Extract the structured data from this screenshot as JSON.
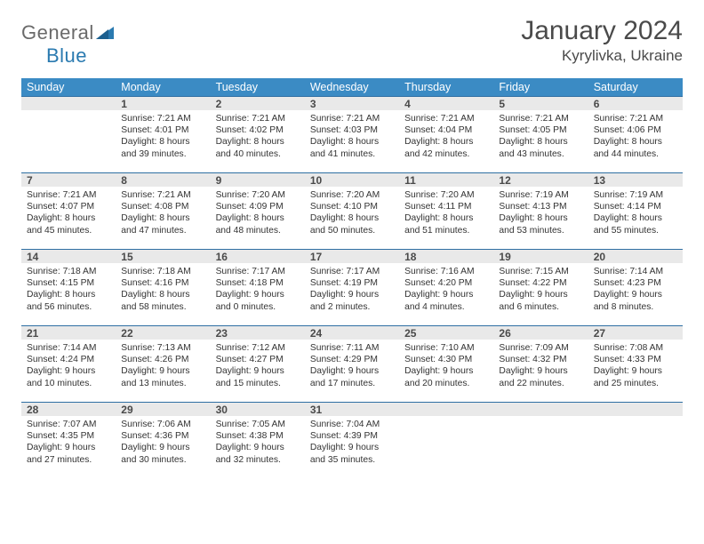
{
  "brand": {
    "general": "General",
    "blue": "Blue"
  },
  "title": "January 2024",
  "location": "Kyrylivka, Ukraine",
  "colors": {
    "header_bg": "#3b8bc4",
    "header_text": "#ffffff",
    "daynum_bg": "#e9e9e9",
    "row_border": "#2f6fa3",
    "text": "#333333",
    "title_color": "#4a4a4a"
  },
  "typography": {
    "title_fontsize": 30,
    "location_fontsize": 17,
    "dayheader_fontsize": 12.5,
    "daynum_fontsize": 12,
    "detail_fontsize": 10.3
  },
  "weekdays": [
    "Sunday",
    "Monday",
    "Tuesday",
    "Wednesday",
    "Thursday",
    "Friday",
    "Saturday"
  ],
  "weeks": [
    [
      {
        "n": "",
        "sr": "",
        "ss": "",
        "dl": ""
      },
      {
        "n": "1",
        "sr": "Sunrise: 7:21 AM",
        "ss": "Sunset: 4:01 PM",
        "dl": "Daylight: 8 hours and 39 minutes."
      },
      {
        "n": "2",
        "sr": "Sunrise: 7:21 AM",
        "ss": "Sunset: 4:02 PM",
        "dl": "Daylight: 8 hours and 40 minutes."
      },
      {
        "n": "3",
        "sr": "Sunrise: 7:21 AM",
        "ss": "Sunset: 4:03 PM",
        "dl": "Daylight: 8 hours and 41 minutes."
      },
      {
        "n": "4",
        "sr": "Sunrise: 7:21 AM",
        "ss": "Sunset: 4:04 PM",
        "dl": "Daylight: 8 hours and 42 minutes."
      },
      {
        "n": "5",
        "sr": "Sunrise: 7:21 AM",
        "ss": "Sunset: 4:05 PM",
        "dl": "Daylight: 8 hours and 43 minutes."
      },
      {
        "n": "6",
        "sr": "Sunrise: 7:21 AM",
        "ss": "Sunset: 4:06 PM",
        "dl": "Daylight: 8 hours and 44 minutes."
      }
    ],
    [
      {
        "n": "7",
        "sr": "Sunrise: 7:21 AM",
        "ss": "Sunset: 4:07 PM",
        "dl": "Daylight: 8 hours and 45 minutes."
      },
      {
        "n": "8",
        "sr": "Sunrise: 7:21 AM",
        "ss": "Sunset: 4:08 PM",
        "dl": "Daylight: 8 hours and 47 minutes."
      },
      {
        "n": "9",
        "sr": "Sunrise: 7:20 AM",
        "ss": "Sunset: 4:09 PM",
        "dl": "Daylight: 8 hours and 48 minutes."
      },
      {
        "n": "10",
        "sr": "Sunrise: 7:20 AM",
        "ss": "Sunset: 4:10 PM",
        "dl": "Daylight: 8 hours and 50 minutes."
      },
      {
        "n": "11",
        "sr": "Sunrise: 7:20 AM",
        "ss": "Sunset: 4:11 PM",
        "dl": "Daylight: 8 hours and 51 minutes."
      },
      {
        "n": "12",
        "sr": "Sunrise: 7:19 AM",
        "ss": "Sunset: 4:13 PM",
        "dl": "Daylight: 8 hours and 53 minutes."
      },
      {
        "n": "13",
        "sr": "Sunrise: 7:19 AM",
        "ss": "Sunset: 4:14 PM",
        "dl": "Daylight: 8 hours and 55 minutes."
      }
    ],
    [
      {
        "n": "14",
        "sr": "Sunrise: 7:18 AM",
        "ss": "Sunset: 4:15 PM",
        "dl": "Daylight: 8 hours and 56 minutes."
      },
      {
        "n": "15",
        "sr": "Sunrise: 7:18 AM",
        "ss": "Sunset: 4:16 PM",
        "dl": "Daylight: 8 hours and 58 minutes."
      },
      {
        "n": "16",
        "sr": "Sunrise: 7:17 AM",
        "ss": "Sunset: 4:18 PM",
        "dl": "Daylight: 9 hours and 0 minutes."
      },
      {
        "n": "17",
        "sr": "Sunrise: 7:17 AM",
        "ss": "Sunset: 4:19 PM",
        "dl": "Daylight: 9 hours and 2 minutes."
      },
      {
        "n": "18",
        "sr": "Sunrise: 7:16 AM",
        "ss": "Sunset: 4:20 PM",
        "dl": "Daylight: 9 hours and 4 minutes."
      },
      {
        "n": "19",
        "sr": "Sunrise: 7:15 AM",
        "ss": "Sunset: 4:22 PM",
        "dl": "Daylight: 9 hours and 6 minutes."
      },
      {
        "n": "20",
        "sr": "Sunrise: 7:14 AM",
        "ss": "Sunset: 4:23 PM",
        "dl": "Daylight: 9 hours and 8 minutes."
      }
    ],
    [
      {
        "n": "21",
        "sr": "Sunrise: 7:14 AM",
        "ss": "Sunset: 4:24 PM",
        "dl": "Daylight: 9 hours and 10 minutes."
      },
      {
        "n": "22",
        "sr": "Sunrise: 7:13 AM",
        "ss": "Sunset: 4:26 PM",
        "dl": "Daylight: 9 hours and 13 minutes."
      },
      {
        "n": "23",
        "sr": "Sunrise: 7:12 AM",
        "ss": "Sunset: 4:27 PM",
        "dl": "Daylight: 9 hours and 15 minutes."
      },
      {
        "n": "24",
        "sr": "Sunrise: 7:11 AM",
        "ss": "Sunset: 4:29 PM",
        "dl": "Daylight: 9 hours and 17 minutes."
      },
      {
        "n": "25",
        "sr": "Sunrise: 7:10 AM",
        "ss": "Sunset: 4:30 PM",
        "dl": "Daylight: 9 hours and 20 minutes."
      },
      {
        "n": "26",
        "sr": "Sunrise: 7:09 AM",
        "ss": "Sunset: 4:32 PM",
        "dl": "Daylight: 9 hours and 22 minutes."
      },
      {
        "n": "27",
        "sr": "Sunrise: 7:08 AM",
        "ss": "Sunset: 4:33 PM",
        "dl": "Daylight: 9 hours and 25 minutes."
      }
    ],
    [
      {
        "n": "28",
        "sr": "Sunrise: 7:07 AM",
        "ss": "Sunset: 4:35 PM",
        "dl": "Daylight: 9 hours and 27 minutes."
      },
      {
        "n": "29",
        "sr": "Sunrise: 7:06 AM",
        "ss": "Sunset: 4:36 PM",
        "dl": "Daylight: 9 hours and 30 minutes."
      },
      {
        "n": "30",
        "sr": "Sunrise: 7:05 AM",
        "ss": "Sunset: 4:38 PM",
        "dl": "Daylight: 9 hours and 32 minutes."
      },
      {
        "n": "31",
        "sr": "Sunrise: 7:04 AM",
        "ss": "Sunset: 4:39 PM",
        "dl": "Daylight: 9 hours and 35 minutes."
      },
      {
        "n": "",
        "sr": "",
        "ss": "",
        "dl": ""
      },
      {
        "n": "",
        "sr": "",
        "ss": "",
        "dl": ""
      },
      {
        "n": "",
        "sr": "",
        "ss": "",
        "dl": ""
      }
    ]
  ]
}
